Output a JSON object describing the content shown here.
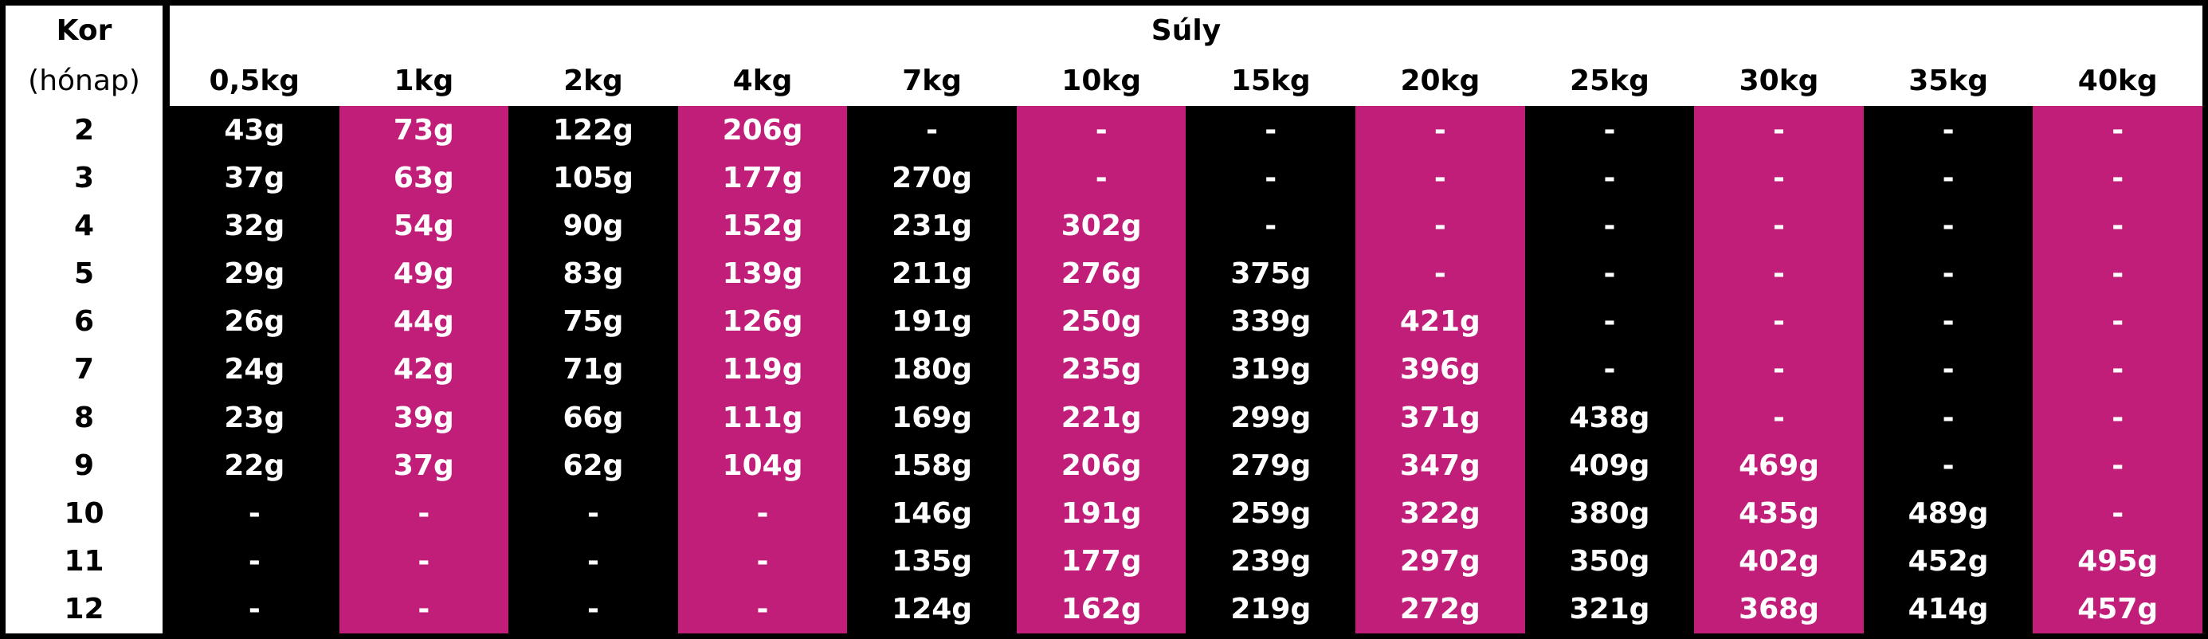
{
  "header": {
    "age_title": "Kor",
    "age_unit": "(hónap)",
    "weight_title": "Súly",
    "weights": [
      "0,5kg",
      "1kg",
      "2kg",
      "4kg",
      "7kg",
      "10kg",
      "15kg",
      "20kg",
      "25kg",
      "30kg",
      "35kg",
      "40kg"
    ]
  },
  "rows": [
    {
      "age": "2",
      "cells": [
        "43g",
        "73g",
        "122g",
        "206g",
        "-",
        "-",
        "-",
        "-",
        "-",
        "-",
        "-",
        "-"
      ]
    },
    {
      "age": "3",
      "cells": [
        "37g",
        "63g",
        "105g",
        "177g",
        "270g",
        "-",
        "-",
        "-",
        "-",
        "-",
        "-",
        "-"
      ]
    },
    {
      "age": "4",
      "cells": [
        "32g",
        "54g",
        "90g",
        "152g",
        "231g",
        "302g",
        "-",
        "-",
        "-",
        "-",
        "-",
        "-"
      ]
    },
    {
      "age": "5",
      "cells": [
        "29g",
        "49g",
        "83g",
        "139g",
        "211g",
        "276g",
        "375g",
        "-",
        "-",
        "-",
        "-",
        "-"
      ]
    },
    {
      "age": "6",
      "cells": [
        "26g",
        "44g",
        "75g",
        "126g",
        "191g",
        "250g",
        "339g",
        "421g",
        "-",
        "-",
        "-",
        "-"
      ]
    },
    {
      "age": "7",
      "cells": [
        "24g",
        "42g",
        "71g",
        "119g",
        "180g",
        "235g",
        "319g",
        "396g",
        "-",
        "-",
        "-",
        "-"
      ]
    },
    {
      "age": "8",
      "cells": [
        "23g",
        "39g",
        "66g",
        "111g",
        "169g",
        "221g",
        "299g",
        "371g",
        "438g",
        "-",
        "-",
        "-"
      ]
    },
    {
      "age": "9",
      "cells": [
        "22g",
        "37g",
        "62g",
        "104g",
        "158g",
        "206g",
        "279g",
        "347g",
        "409g",
        "469g",
        "-",
        "-"
      ]
    },
    {
      "age": "10",
      "cells": [
        "-",
        "-",
        "-",
        "-",
        "146g",
        "191g",
        "259g",
        "322g",
        "380g",
        "435g",
        "489g",
        "-"
      ]
    },
    {
      "age": "11",
      "cells": [
        "-",
        "-",
        "-",
        "-",
        "135g",
        "177g",
        "239g",
        "297g",
        "350g",
        "402g",
        "452g",
        "495g"
      ]
    },
    {
      "age": "12",
      "cells": [
        "-",
        "-",
        "-",
        "-",
        "124g",
        "162g",
        "219g",
        "272g",
        "321g",
        "368g",
        "414g",
        "457g"
      ]
    }
  ]
}
